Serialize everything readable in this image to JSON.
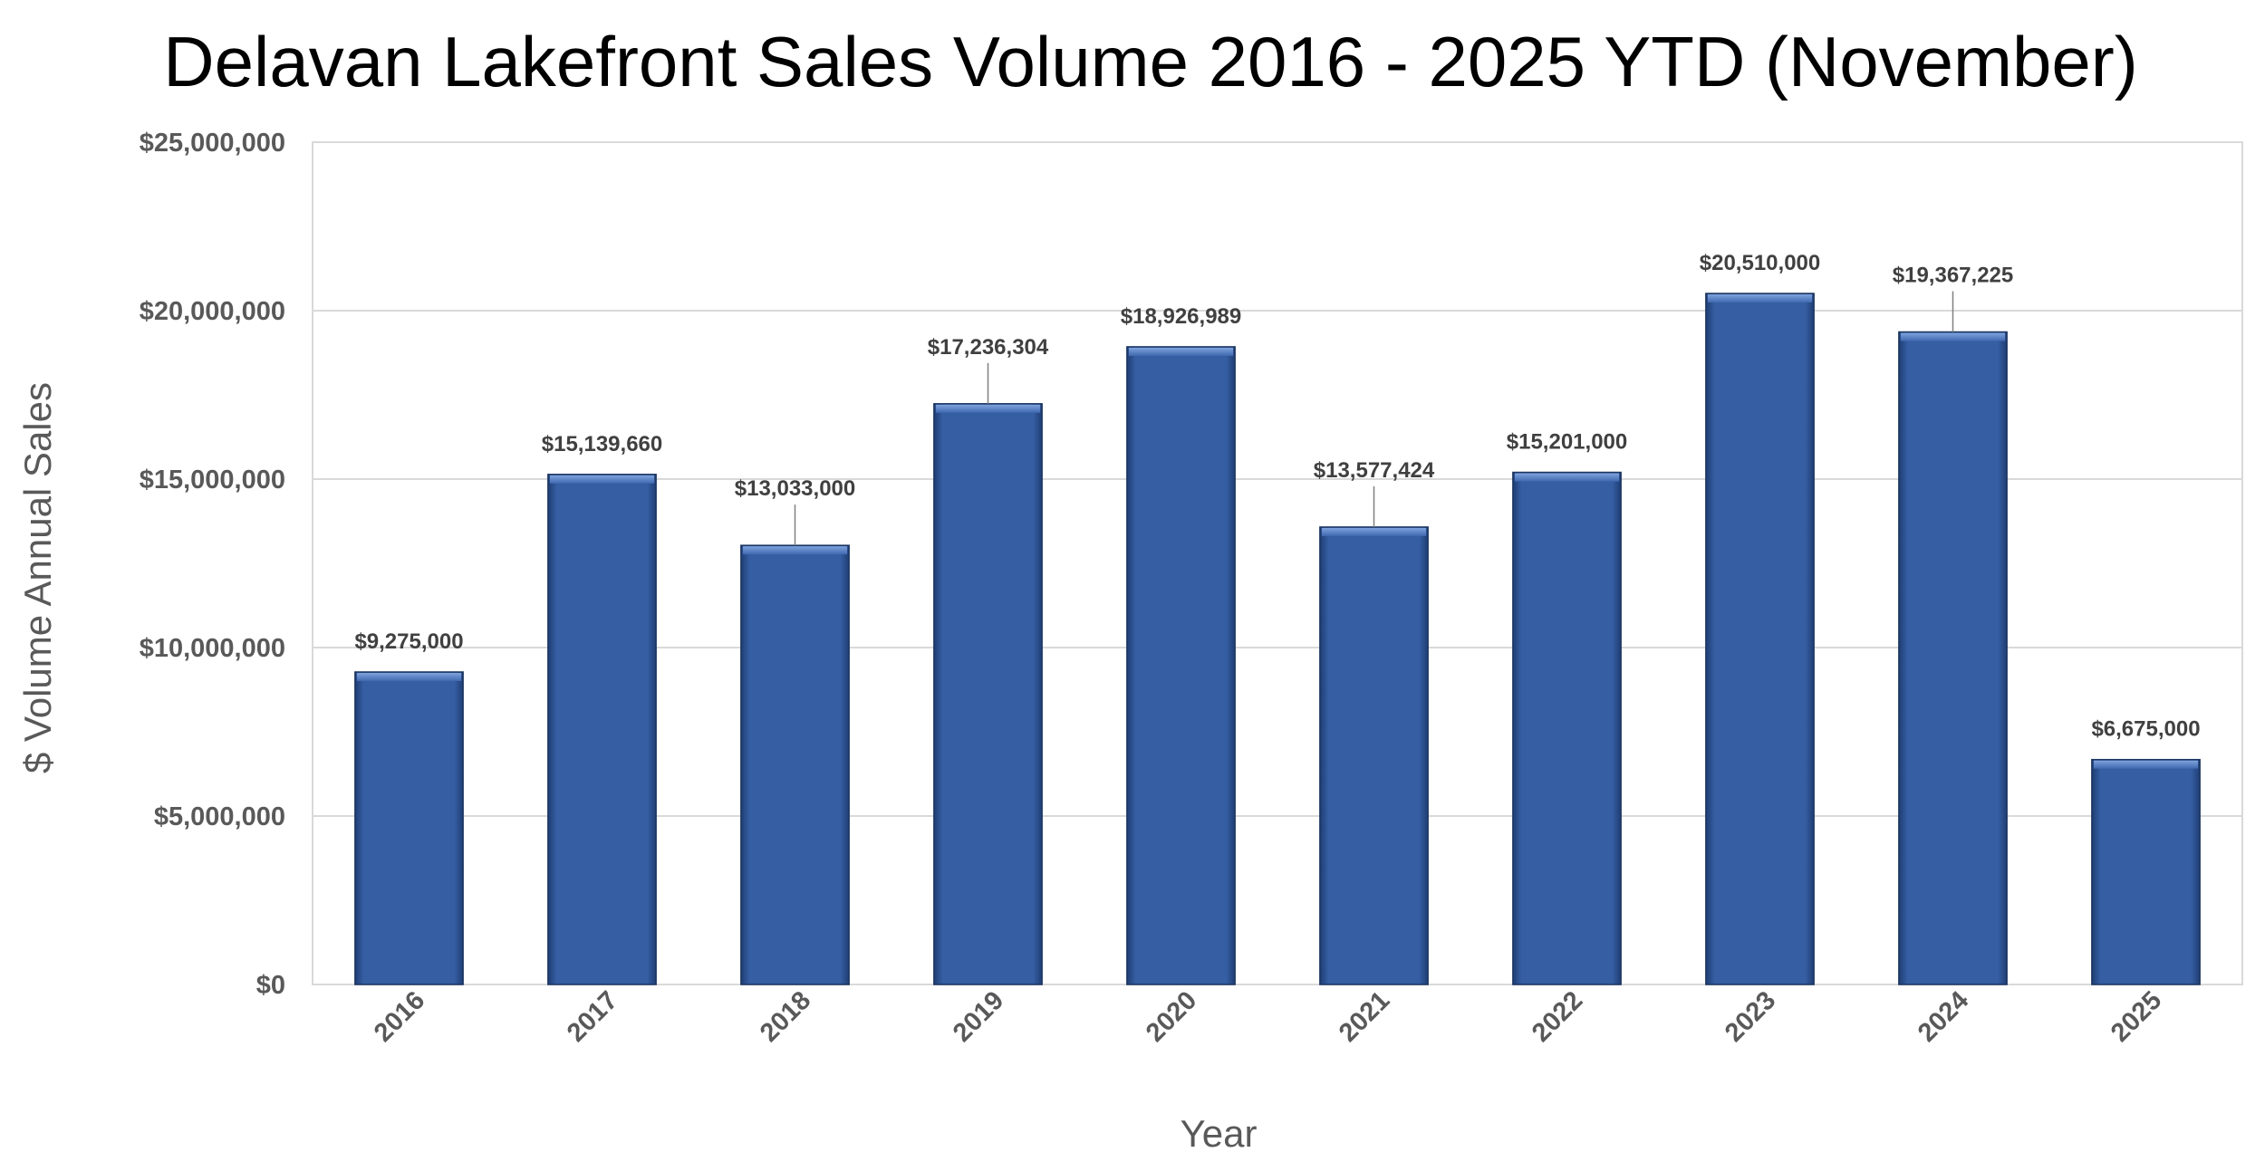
{
  "chart_data": {
    "type": "bar",
    "title": "Delavan Lakefront Sales Volume 2016 - 2025 YTD (November)",
    "xlabel": "Year",
    "ylabel": "$ Volume Annual Sales",
    "categories": [
      "2016",
      "2017",
      "2018",
      "2019",
      "2020",
      "2021",
      "2022",
      "2023",
      "2024",
      "2025"
    ],
    "values": [
      9275000,
      15139660,
      13033000,
      17236304,
      18926989,
      13577424,
      15201000,
      20510000,
      19367225,
      6675000
    ],
    "data_labels": [
      "$9,275,000",
      "$15,139,660",
      "$13,033,000",
      "$17,236,304",
      "$18,926,989",
      "$13,577,424",
      "$15,201,000",
      "$20,510,000",
      "$19,367,225",
      "$6,675,000"
    ],
    "ylim": [
      0,
      25000000
    ],
    "yticks": [
      0,
      5000000,
      10000000,
      15000000,
      20000000,
      25000000
    ],
    "ytick_labels": [
      "$0",
      "$5,000,000",
      "$10,000,000",
      "$15,000,000",
      "$20,000,000",
      "$25,000,000"
    ],
    "grid": true,
    "legend": "none",
    "bar_color": "#355ea3"
  }
}
